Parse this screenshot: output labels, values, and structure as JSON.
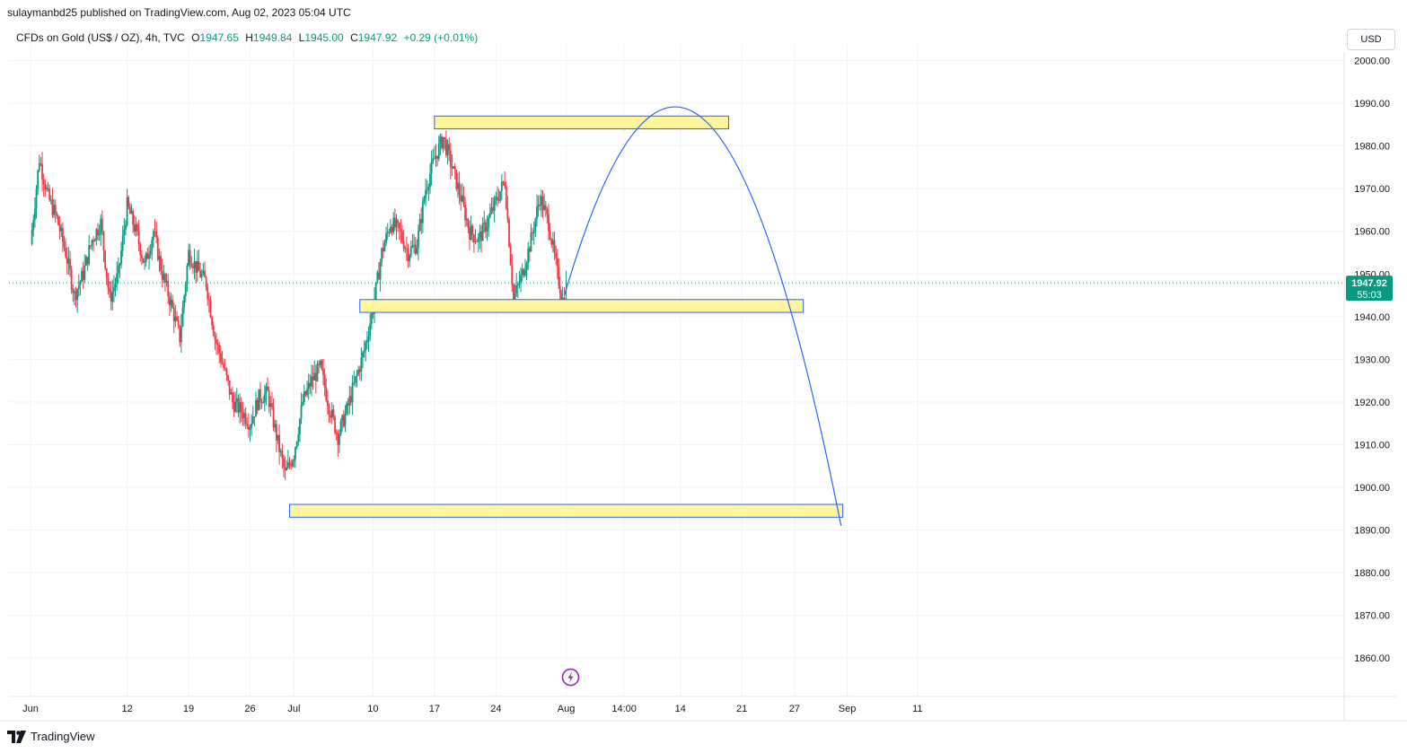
{
  "publisher_line": "sulaymanbd25 published on TradingView.com, Aug 02, 2023 05:04 UTC",
  "legend": {
    "symbol": "CFDs on Gold (US$ / OZ), 4h, TVC",
    "open_label": "O",
    "open": "1947.65",
    "high_label": "H",
    "high": "1949.84",
    "low_label": "L",
    "low": "1945.00",
    "close_label": "C",
    "close": "1947.92",
    "change": "+0.29 (+0.01%)"
  },
  "currency": "USD",
  "footer_brand": "TradingView",
  "price_tag": {
    "price": "1947.92",
    "countdown": "55:03",
    "color": "#089981"
  },
  "colors": {
    "up": "#089981",
    "down": "#f23645",
    "zone_fill": "#fff59d",
    "zone_border": "#2962ff",
    "arc": "#2962ff",
    "grid": "#f0f3fa"
  },
  "chart_data": {
    "type": "candlestick",
    "symbol": "CFDs on Gold (US$ / OZ)",
    "timeframe": "4h",
    "ylim": [
      1851,
      2002
    ],
    "y_ticks": [
      1860,
      1870,
      1880,
      1890,
      1900,
      1910,
      1920,
      1930,
      1940,
      1950,
      1960,
      1970,
      1980,
      1990,
      2000
    ],
    "y_tick_labels": [
      "1860.00",
      "1870.00",
      "1880.00",
      "1890.00",
      "1900.00",
      "1910.00",
      "1920.00",
      "1930.00",
      "1940.00",
      "1950.00",
      "1960.00",
      "1970.00",
      "1980.00",
      "1990.00",
      "2000.00"
    ],
    "x_tick_labels": [
      "Jun",
      "12",
      "19",
      "26",
      "Jul",
      "10",
      "17",
      "24",
      "Aug",
      "14:00",
      "14",
      "21",
      "27",
      "Sep",
      "11"
    ],
    "x_tick_day_index": [
      0,
      11,
      18,
      25,
      30,
      39,
      46,
      53,
      61,
      67.6,
      74,
      81,
      87,
      93,
      101
    ],
    "last_price": 1947.92,
    "price_path": [
      [
        0,
        1957
      ],
      [
        1,
        1977
      ],
      [
        2,
        1968
      ],
      [
        3,
        1963
      ],
      [
        4,
        1955
      ],
      [
        5,
        1945
      ],
      [
        6,
        1950
      ],
      [
        7,
        1958
      ],
      [
        8,
        1962
      ],
      [
        9,
        1944
      ],
      [
        10,
        1950
      ],
      [
        11,
        1966
      ],
      [
        12,
        1960
      ],
      [
        13,
        1952
      ],
      [
        14,
        1960
      ],
      [
        15,
        1950
      ],
      [
        16,
        1943
      ],
      [
        17,
        1935
      ],
      [
        18,
        1955
      ],
      [
        19,
        1951
      ],
      [
        20,
        1948
      ],
      [
        21,
        1935
      ],
      [
        22,
        1928
      ],
      [
        23,
        1920
      ],
      [
        24,
        1918
      ],
      [
        25,
        1915
      ],
      [
        26,
        1921
      ],
      [
        27,
        1922
      ],
      [
        28,
        1912
      ],
      [
        29,
        1903
      ],
      [
        30,
        1908
      ],
      [
        31,
        1920
      ],
      [
        32,
        1925
      ],
      [
        33,
        1928
      ],
      [
        34,
        1919
      ],
      [
        35,
        1912
      ],
      [
        36,
        1918
      ],
      [
        37,
        1925
      ],
      [
        38,
        1932
      ],
      [
        39,
        1942
      ],
      [
        40,
        1955
      ],
      [
        41,
        1962
      ],
      [
        42,
        1960
      ],
      [
        43,
        1955
      ],
      [
        44,
        1957
      ],
      [
        45,
        1970
      ],
      [
        46,
        1977
      ],
      [
        47,
        1982
      ],
      [
        48,
        1975
      ],
      [
        49,
        1968
      ],
      [
        50,
        1960
      ],
      [
        51,
        1958
      ],
      [
        52,
        1962
      ],
      [
        53,
        1967
      ],
      [
        54,
        1972
      ],
      [
        55,
        1944
      ],
      [
        56,
        1950
      ],
      [
        57,
        1958
      ],
      [
        58,
        1968
      ],
      [
        59,
        1962
      ],
      [
        60,
        1950
      ],
      [
        60.6,
        1944
      ],
      [
        61.0,
        1947.92
      ]
    ],
    "zones": [
      {
        "top": 1987,
        "bottom": 1984,
        "x_start": 46.0,
        "x_end": 79.5
      },
      {
        "top": 1944,
        "bottom": 1941,
        "x_start": 37.5,
        "x_end": 88.0
      },
      {
        "top": 1896,
        "bottom": 1893,
        "x_start": 29.5,
        "x_end": 92.5
      }
    ],
    "projection_arc": {
      "start": [
        60.8,
        1945
      ],
      "peak": [
        76.5,
        1986.5
      ],
      "end": [
        92.3,
        1891
      ]
    },
    "signal": {
      "x": 61.5,
      "y": 1855.5,
      "icon": "lightning-icon"
    }
  }
}
